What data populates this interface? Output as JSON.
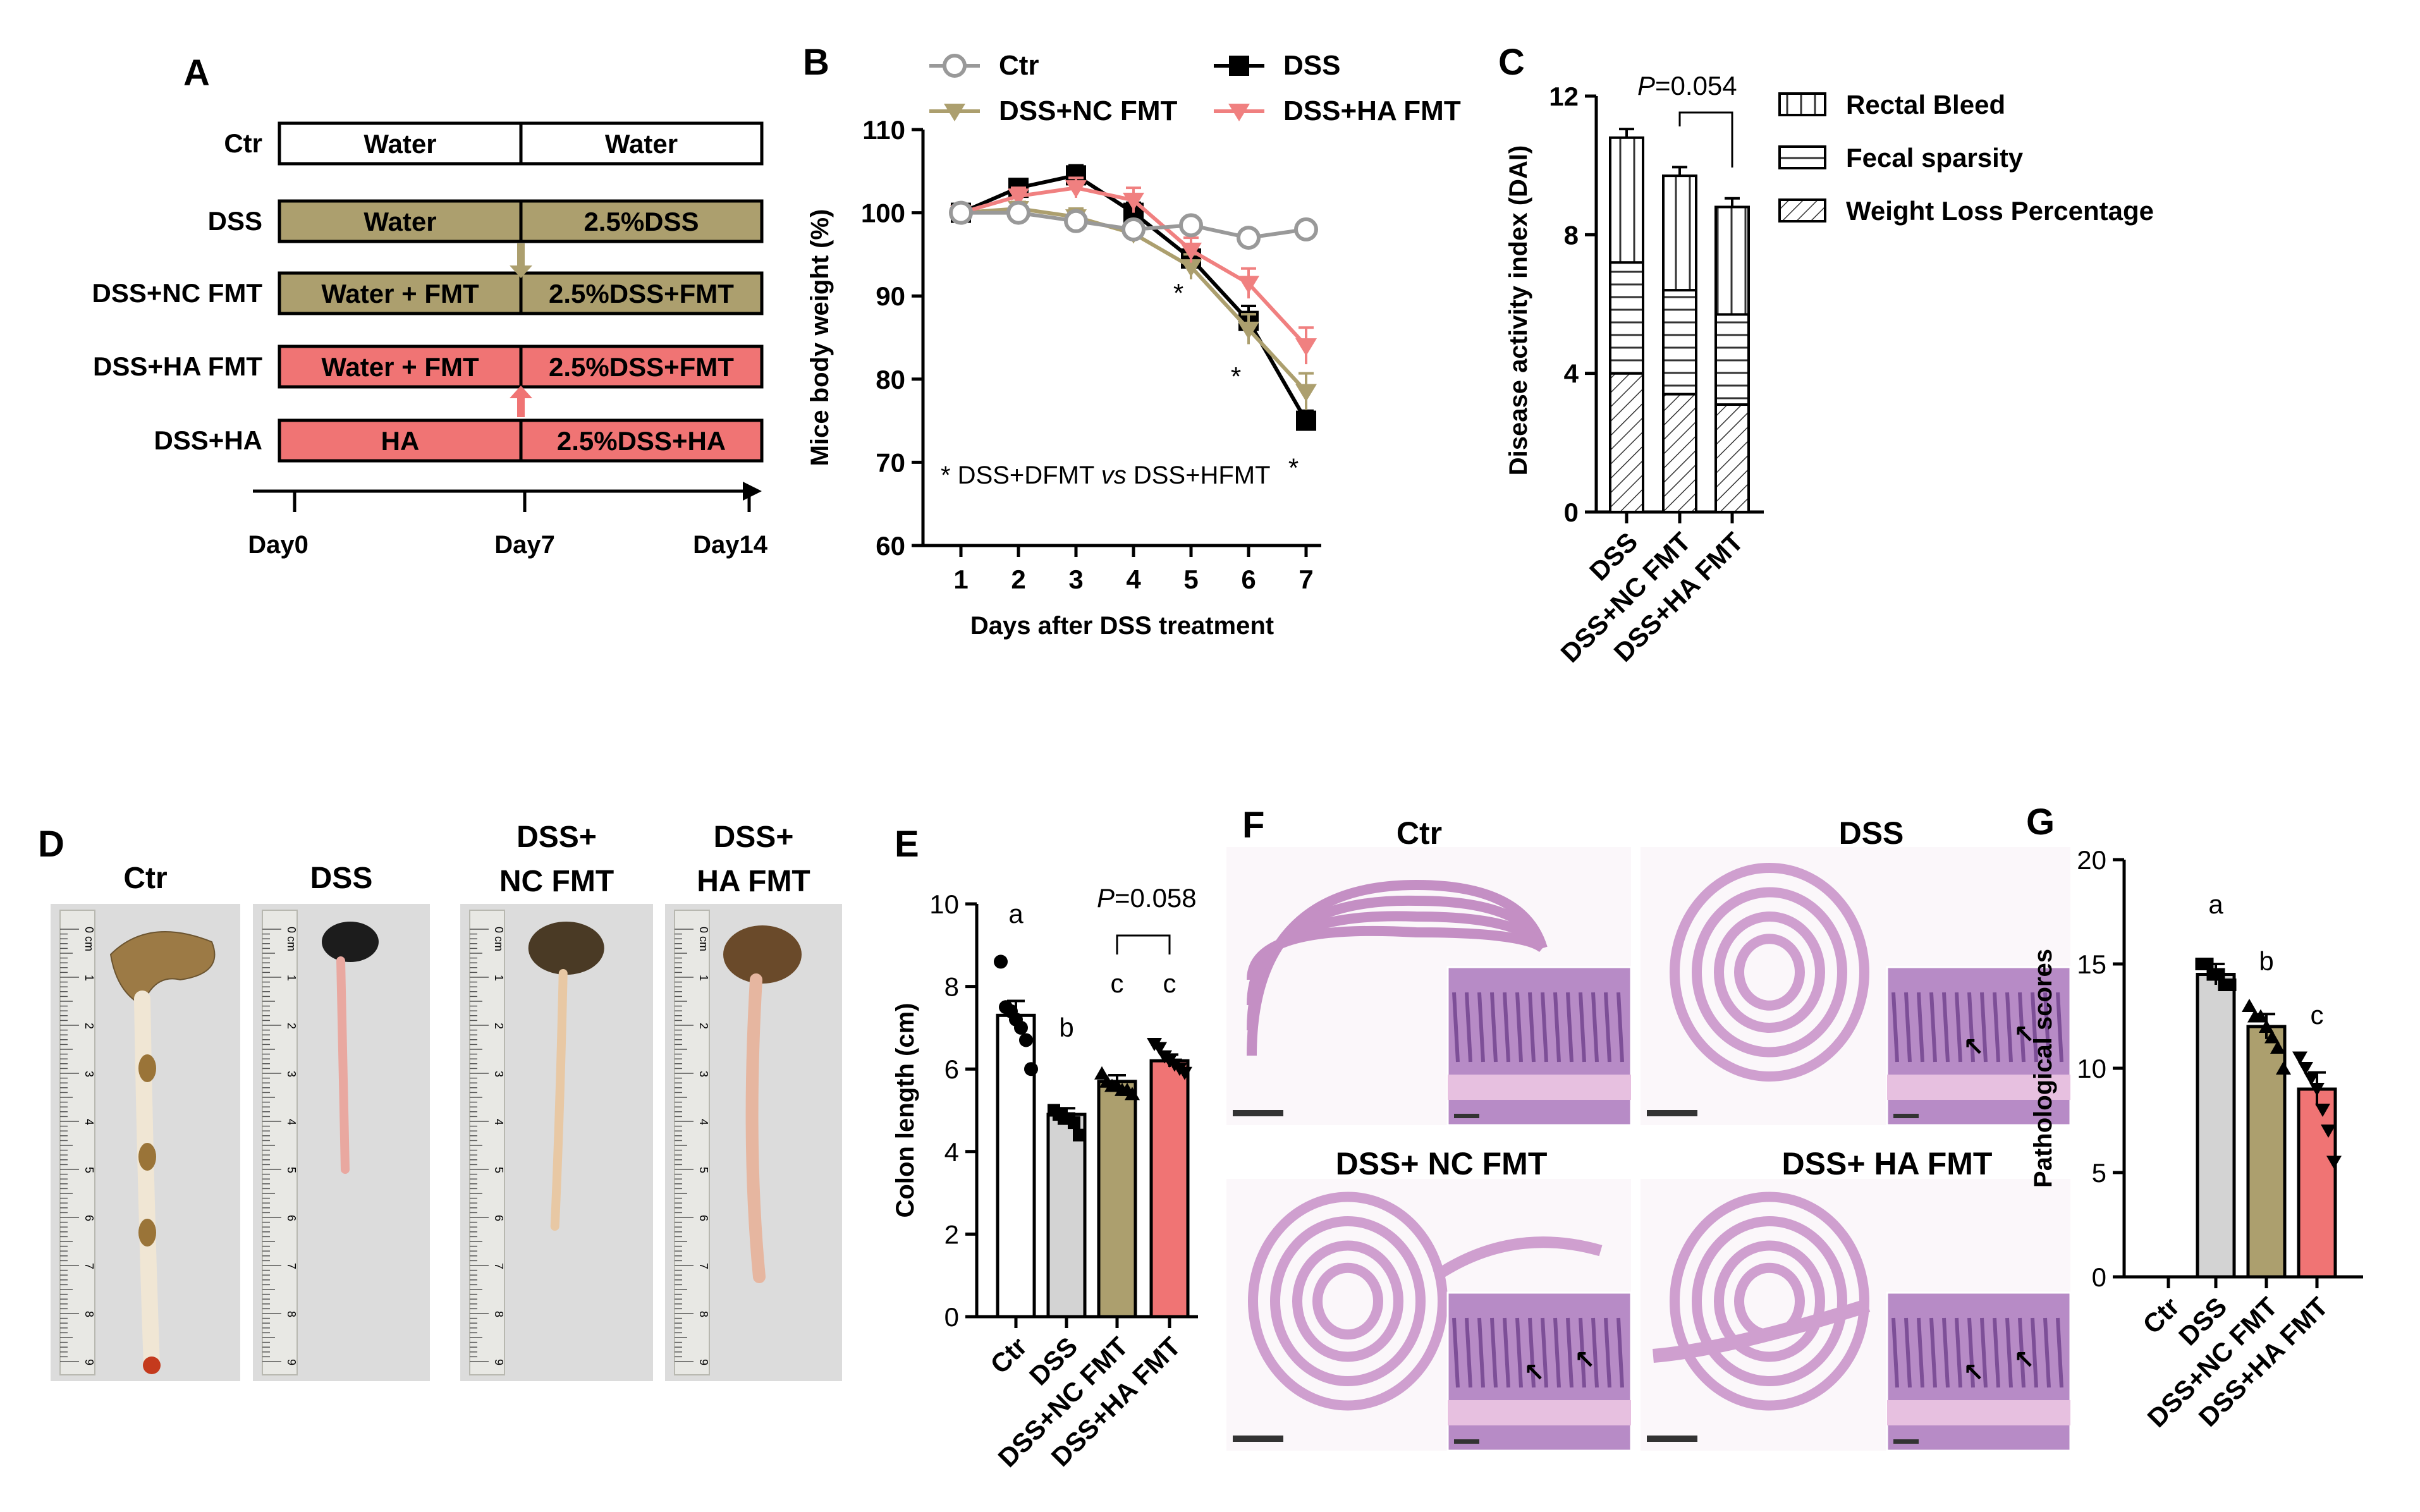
{
  "colors": {
    "ctr_bar": "#ffffff",
    "dss_bar": "#d3d3d3",
    "nc_fmt": "#ac9f6e",
    "ha_fmt": "#f07474",
    "ctr_line": "#999999",
    "ha_line": "#f08080"
  },
  "panel_a": {
    "letter": "A",
    "rows": [
      {
        "label": "Ctr",
        "left": "Water",
        "right": "Water",
        "color": "#ffffff"
      },
      {
        "label": "DSS",
        "left": "Water",
        "right": "2.5%DSS",
        "color": "#ac9f6e"
      },
      {
        "label": "DSS+NC FMT",
        "left": "Water + FMT",
        "right": "2.5%DSS+FMT",
        "color": "#ac9f6e"
      },
      {
        "label": "DSS+HA FMT",
        "left": "Water + FMT",
        "right": "2.5%DSS+FMT",
        "color": "#f07474"
      },
      {
        "label": "DSS+HA",
        "left": "HA",
        "right": "2.5%DSS+HA",
        "color": "#f07474"
      }
    ],
    "timeline": [
      "Day0",
      "Day7",
      "Day14"
    ]
  },
  "chart_data": [
    {
      "panel": "B",
      "type": "line",
      "xlabel": "Days after DSS treatment",
      "ylabel": "Mice body weight (%)",
      "x": [
        1,
        2,
        3,
        4,
        5,
        6,
        7
      ],
      "ylim": [
        60,
        110
      ],
      "yticks": [
        60,
        70,
        80,
        90,
        100,
        110
      ],
      "series": [
        {
          "name": "Ctr",
          "marker": "circle-open",
          "color": "#999999",
          "values": [
            100,
            100,
            99,
            98,
            98.5,
            97,
            98
          ]
        },
        {
          "name": "DSS",
          "marker": "square",
          "color": "#000000",
          "values": [
            100,
            103,
            104.5,
            100,
            94.5,
            87,
            75
          ]
        },
        {
          "name": "DSS+NC FMT",
          "marker": "triangle-down",
          "color": "#ac9f6e",
          "values": [
            100,
            100.5,
            99.5,
            97.5,
            93.5,
            86,
            78.5
          ]
        },
        {
          "name": "DSS+HA FMT",
          "marker": "triangle-down",
          "color": "#f08080",
          "values": [
            100,
            102,
            103,
            101.5,
            95.5,
            91.5,
            84
          ]
        }
      ],
      "errors": {
        "DSS": [
          0,
          1,
          1.2,
          1.2,
          1.5,
          1.8,
          1.2
        ],
        "DSS+NC FMT": [
          0,
          0.8,
          1,
          1,
          1.5,
          1.8,
          2.2
        ],
        "DSS+HA FMT": [
          0,
          1,
          1.2,
          1.5,
          1.5,
          1.8,
          2.2
        ]
      },
      "significance": [
        {
          "x": 5,
          "label": "*"
        },
        {
          "x": 6,
          "label": "*"
        },
        {
          "x": 7,
          "label": "*"
        }
      ],
      "annotation": "* DSS+DFMT vs DSS+HFMT"
    },
    {
      "panel": "C",
      "type": "bar",
      "stacked": true,
      "ylabel": "Disease activity index (DAI)",
      "categories": [
        "DSS",
        "DSS+NC FMT",
        "DSS+HA FMT"
      ],
      "ylim": [
        0,
        12
      ],
      "yticks": [
        0,
        4,
        8,
        12
      ],
      "series": [
        {
          "name": "Weight Loss Percentage",
          "pattern": "diagonal",
          "values": [
            4,
            3.4,
            3.1
          ]
        },
        {
          "name": "Fecal sparsity",
          "pattern": "horizontal",
          "values": [
            3.2,
            3.0,
            2.6
          ]
        },
        {
          "name": "Rectal Bleed",
          "pattern": "vertical",
          "values": [
            3.6,
            3.3,
            3.1
          ]
        }
      ],
      "legend": [
        "Rectal Bleed",
        "Fecal sparsity",
        "Weight Loss Percentage"
      ],
      "pvalue": "=0.054",
      "pvalue_letter": "P"
    },
    {
      "panel": "E",
      "type": "bar",
      "ylabel": "Colon length (cm)",
      "categories": [
        "Ctr",
        "DSS",
        "DSS+NC FMT",
        "DSS+HA FMT"
      ],
      "values": [
        7.3,
        4.9,
        5.7,
        6.2
      ],
      "errors": [
        0.35,
        0.15,
        0.15,
        0.15
      ],
      "points": [
        [
          8.6,
          7.5,
          7.4,
          7.2,
          7.0,
          6.7,
          6.0
        ],
        [
          5.0,
          4.9,
          4.8,
          4.8,
          4.7,
          4.4
        ],
        [
          5.9,
          5.7,
          5.6,
          5.6,
          5.5,
          5.5,
          5.4
        ],
        [
          6.6,
          6.5,
          6.3,
          6.2,
          6.1,
          6.0,
          5.9
        ]
      ],
      "letters": [
        "a",
        "b",
        "c",
        "c"
      ],
      "colors": [
        "#ffffff",
        "#d3d3d3",
        "#ac9f6e",
        "#f07474"
      ],
      "ylim": [
        0,
        10
      ],
      "yticks": [
        0,
        2,
        4,
        6,
        8,
        10
      ],
      "pvalue": "=0.058",
      "pvalue_letter": "P"
    },
    {
      "panel": "G",
      "type": "bar",
      "ylabel": "Pathological scores",
      "categories": [
        "Ctr",
        "DSS",
        "DSS+NC FMT",
        "DSS+HA FMT"
      ],
      "values": [
        0,
        14.5,
        12,
        9
      ],
      "errors": [
        0,
        0.5,
        0.6,
        0.8
      ],
      "points": [
        [],
        [
          15,
          15,
          14.5,
          14.5,
          14,
          14
        ],
        [
          13,
          12.5,
          12.5,
          12,
          11.5,
          11,
          10
        ],
        [
          10.5,
          10,
          9.5,
          9,
          8,
          7,
          5.5
        ]
      ],
      "letters": [
        "",
        "a",
        "b",
        "c"
      ],
      "colors": [
        "#ffffff",
        "#d3d3d3",
        "#ac9f6e",
        "#f07474"
      ],
      "ylim": [
        0,
        20
      ],
      "yticks": [
        0,
        5,
        10,
        15,
        20
      ]
    }
  ],
  "panel_d": {
    "letter": "D",
    "labels": [
      [
        "Ctr"
      ],
      [
        "DSS"
      ],
      [
        "DSS+",
        "NC FMT"
      ],
      [
        "DSS+",
        "HA FMT"
      ]
    ],
    "ruler_marks": [
      "0 cm",
      "1",
      "2",
      "3",
      "4",
      "5",
      "6",
      "7",
      "8",
      "9"
    ]
  },
  "panel_f": {
    "letter": "F",
    "labels": [
      "Ctr",
      "DSS",
      "DSS+ NC FMT",
      "DSS+ HA FMT"
    ]
  }
}
